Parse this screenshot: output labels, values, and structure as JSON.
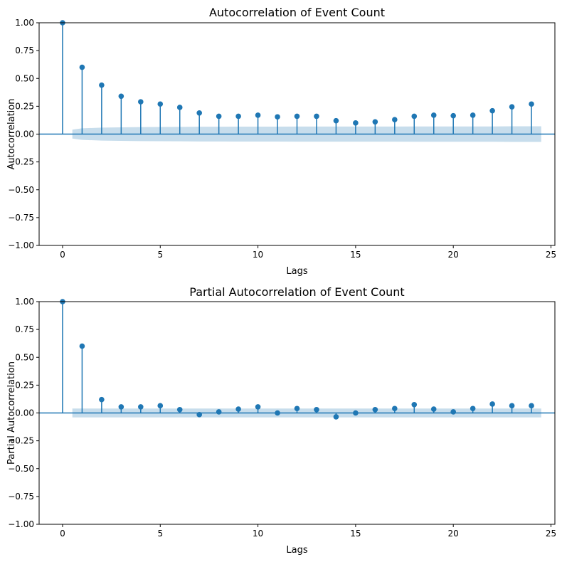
{
  "colors": {
    "stem": "#1f77b4",
    "band": "#1f77b4",
    "axis": "#000000",
    "background": "#ffffff"
  },
  "chart_data": [
    {
      "type": "stem",
      "title": "Autocorrelation of Event Count",
      "xlabel": "Lags",
      "ylabel": "Autocorrelation",
      "xlim": [
        -1.2,
        25.2
      ],
      "ylim": [
        -1.0,
        1.0
      ],
      "xticks": [
        0,
        5,
        10,
        15,
        20,
        25
      ],
      "yticks": [
        -1.0,
        -0.75,
        -0.5,
        -0.25,
        0.0,
        0.25,
        0.5,
        0.75,
        1.0
      ],
      "ytick_labels": [
        "−1.00",
        "−0.75",
        "−0.50",
        "−0.25",
        "0.00",
        "0.25",
        "0.50",
        "0.75",
        "1.00"
      ],
      "grid": false,
      "x": [
        0,
        1,
        2,
        3,
        4,
        5,
        6,
        7,
        8,
        9,
        10,
        11,
        12,
        13,
        14,
        15,
        16,
        17,
        18,
        19,
        20,
        21,
        22,
        23,
        24
      ],
      "values": [
        1.0,
        0.6,
        0.44,
        0.34,
        0.29,
        0.27,
        0.24,
        0.19,
        0.16,
        0.16,
        0.17,
        0.155,
        0.16,
        0.16,
        0.12,
        0.1,
        0.11,
        0.13,
        0.16,
        0.17,
        0.165,
        0.17,
        0.21,
        0.245,
        0.27
      ],
      "confidence_band": {
        "x": [
          0.5,
          1,
          2,
          3,
          4,
          5,
          6,
          7,
          8,
          9,
          10,
          11,
          12,
          13,
          14,
          15,
          16,
          17,
          18,
          19,
          20,
          21,
          22,
          23,
          24,
          24.5
        ],
        "upper": [
          0.04,
          0.052,
          0.058,
          0.061,
          0.063,
          0.064,
          0.065,
          0.066,
          0.066,
          0.067,
          0.067,
          0.067,
          0.068,
          0.068,
          0.068,
          0.068,
          0.068,
          0.068,
          0.069,
          0.069,
          0.069,
          0.069,
          0.069,
          0.07,
          0.07,
          0.07
        ]
      }
    },
    {
      "type": "stem",
      "title": "Partial Autocorrelation of Event Count",
      "xlabel": "Lags",
      "ylabel": "Partial Autocorrelation",
      "xlim": [
        -1.2,
        25.2
      ],
      "ylim": [
        -1.0,
        1.0
      ],
      "xticks": [
        0,
        5,
        10,
        15,
        20,
        25
      ],
      "yticks": [
        -1.0,
        -0.75,
        -0.5,
        -0.25,
        0.0,
        0.25,
        0.5,
        0.75,
        1.0
      ],
      "ytick_labels": [
        "−1.00",
        "−0.75",
        "−0.50",
        "−0.25",
        "0.00",
        "0.25",
        "0.50",
        "0.75",
        "1.00"
      ],
      "grid": false,
      "x": [
        0,
        1,
        2,
        3,
        4,
        5,
        6,
        7,
        8,
        9,
        10,
        11,
        12,
        13,
        14,
        15,
        16,
        17,
        18,
        19,
        20,
        21,
        22,
        23,
        24
      ],
      "values": [
        1.0,
        0.6,
        0.12,
        0.055,
        0.055,
        0.065,
        0.03,
        -0.015,
        0.01,
        0.035,
        0.055,
        0.0,
        0.04,
        0.03,
        -0.035,
        0.0,
        0.03,
        0.04,
        0.075,
        0.035,
        0.01,
        0.04,
        0.08,
        0.065,
        0.065
      ],
      "confidence_band": {
        "x": [
          0.5,
          24.5
        ],
        "upper": [
          0.04,
          0.04
        ]
      }
    }
  ]
}
